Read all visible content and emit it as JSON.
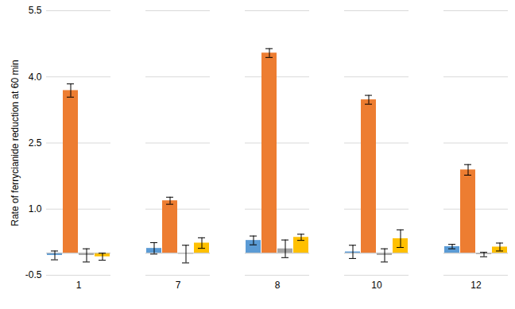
{
  "chart_data": {
    "type": "bar",
    "y_label": "Rate of ferrycianide reduction at 60 min",
    "categories": [
      "1",
      "7",
      "8",
      "10",
      "12"
    ],
    "series": [
      {
        "color": "#5b9bd5",
        "values": [
          -0.05,
          0.11,
          0.29,
          0.03,
          0.15
        ],
        "errors": [
          0.1,
          0.13,
          0.1,
          0.15,
          0.05
        ]
      },
      {
        "color": "#ed7d31",
        "values": [
          3.69,
          1.19,
          4.54,
          3.48,
          1.89
        ],
        "errors": [
          0.15,
          0.08,
          0.1,
          0.1,
          0.12
        ]
      },
      {
        "color": "#a5a5a5",
        "values": [
          -0.05,
          -0.02,
          0.1,
          -0.05,
          -0.03
        ],
        "errors": [
          0.15,
          0.2,
          0.2,
          0.15,
          0.05
        ]
      },
      {
        "color": "#ffc000",
        "values": [
          -0.08,
          0.23,
          0.36,
          0.33,
          0.14
        ],
        "errors": [
          0.08,
          0.12,
          0.07,
          0.2,
          0.09
        ]
      }
    ],
    "ylim": [
      -0.5,
      5.5
    ],
    "yticks": [
      -0.5,
      {
        "value": 1,
        "label": "1.0"
      },
      2.5,
      {
        "value": 4,
        "label": "4.0"
      },
      5.5
    ],
    "grid": true
  }
}
